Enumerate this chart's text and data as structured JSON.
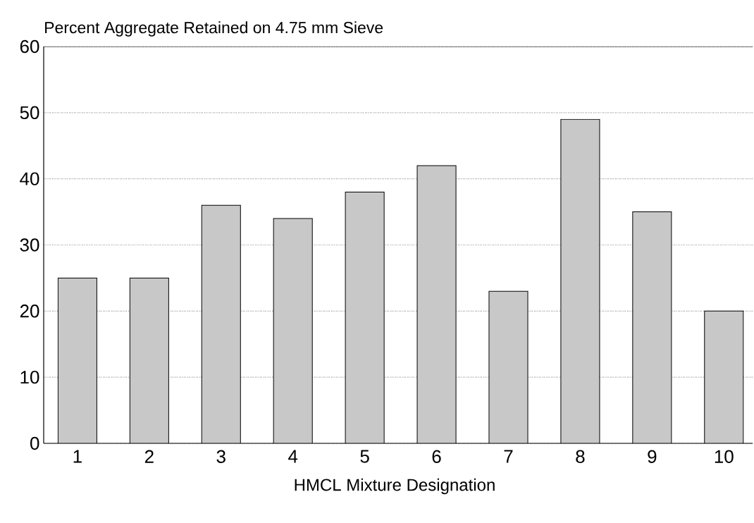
{
  "chart_data": {
    "type": "bar",
    "title": "Percent Aggregate Retained on 4.75 mm Sieve",
    "xlabel": "HMCL Mixture Designation",
    "categories": [
      "1",
      "2",
      "3",
      "4",
      "5",
      "6",
      "7",
      "8",
      "9",
      "10"
    ],
    "values": [
      25,
      25,
      36,
      34,
      38,
      42,
      23,
      49,
      35,
      20
    ],
    "color": "#c8c8c8",
    "ylim": [
      0,
      60
    ],
    "yticks": [
      0,
      10,
      20,
      30,
      40,
      50,
      60
    ],
    "grid": "y"
  }
}
